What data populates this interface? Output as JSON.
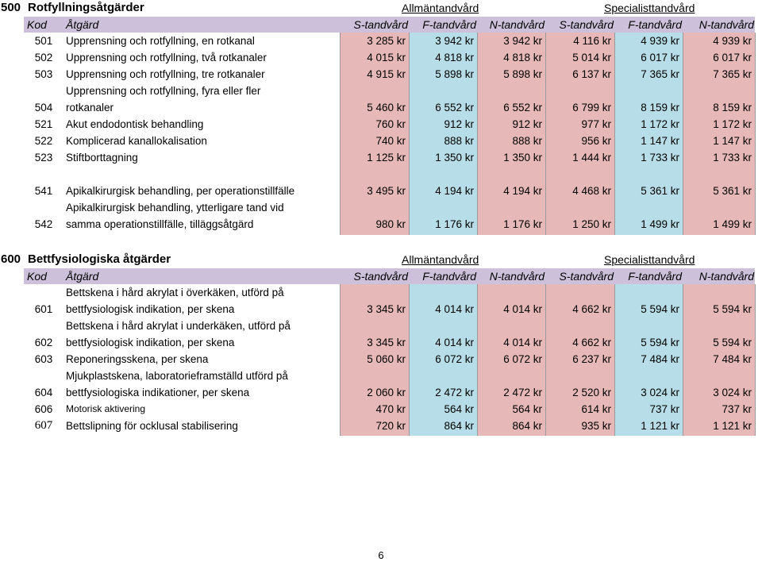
{
  "columns": [
    "S-tandvård",
    "F-tandvård",
    "N-tandvård",
    "S-tandvård",
    "F-tandvård",
    "N-tandvård"
  ],
  "header": {
    "kod": "Kod",
    "atgard": "Åtgärd",
    "group_a": "Allmäntandvård",
    "group_s": "Specialisttandvård"
  },
  "sections": [
    {
      "number": "500",
      "title": "Rotfyllningsåtgärder",
      "rows": [
        {
          "code": "501",
          "desc": "Upprensning och rotfyllning, en rotkanal",
          "prices": [
            "3 285 kr",
            "3 942 kr",
            "3 942 kr",
            "4 116 kr",
            "4 939 kr",
            "4 939 kr"
          ]
        },
        {
          "code": "502",
          "desc": "Upprensning och rotfyllning, två rotkanaler",
          "prices": [
            "4 015 kr",
            "4 818 kr",
            "4 818 kr",
            "5 014 kr",
            "6 017 kr",
            "6 017 kr"
          ]
        },
        {
          "code": "503",
          "desc": "Upprensning och rotfyllning, tre rotkanaler",
          "prices": [
            "4 915 kr",
            "5 898 kr",
            "5 898 kr",
            "6 137 kr",
            "7 365 kr",
            "7 365 kr"
          ]
        },
        {
          "code": "504",
          "desc": "Upprensning och rotfyllning, fyra eller fler rotkanaler",
          "prices": [
            "5 460 kr",
            "6 552 kr",
            "6 552 kr",
            "6 799 kr",
            "8 159 kr",
            "8 159 kr"
          ]
        },
        {
          "code": "521",
          "desc": "Akut endodontisk behandling",
          "prices": [
            "760 kr",
            "912 kr",
            "912 kr",
            "977 kr",
            "1 172 kr",
            "1 172 kr"
          ]
        },
        {
          "code": "522",
          "desc": "Komplicerad kanallokalisation",
          "prices": [
            "740 kr",
            "888 kr",
            "888 kr",
            "956 kr",
            "1 147 kr",
            "1 147 kr"
          ]
        },
        {
          "code": "523",
          "desc": "Stiftborttagning",
          "prices": [
            "1 125 kr",
            "1 350 kr",
            "1 350 kr",
            "1 444 kr",
            "1 733 kr",
            "1 733 kr"
          ]
        },
        {
          "code": "541",
          "desc": "Apikalkirurgisk behandling, per operationstillfälle",
          "prices": [
            "3 495 kr",
            "4 194 kr",
            "4 194 kr",
            "4 468 kr",
            "5 361 kr",
            "5 361 kr"
          ]
        },
        {
          "code": "542",
          "desc": "Apikalkirurgisk behandling, ytterligare tand vid samma operationstillfälle, tilläggsåtgärd",
          "prices": [
            "980 kr",
            "1 176 kr",
            "1 176 kr",
            "1 250 kr",
            "1 499 kr",
            "1 499 kr"
          ]
        }
      ]
    },
    {
      "number": "600",
      "title": "Bettfysiologiska åtgärder",
      "rows": [
        {
          "code": "601",
          "desc": "Bettskena i hård akrylat i överkäken, utförd på bettfysiologisk indikation, per skena",
          "prices": [
            "3 345 kr",
            "4 014 kr",
            "4 014 kr",
            "4 662 kr",
            "5 594 kr",
            "5 594 kr"
          ]
        },
        {
          "code": "602",
          "desc": "Bettskena i hård akrylat i underkäken, utförd på bettfysiologisk indikation, per skena",
          "prices": [
            "3 345 kr",
            "4 014 kr",
            "4 014 kr",
            "4 662 kr",
            "5 594 kr",
            "5 594 kr"
          ]
        },
        {
          "code": "603",
          "desc": "Reponeringsskena, per skena",
          "prices": [
            "5 060 kr",
            "6 072 kr",
            "6 072 kr",
            "6 237 kr",
            "7 484 kr",
            "7 484 kr"
          ]
        },
        {
          "code": "604",
          "desc": "Mjukplastskena, laboratorieframställd utförd på bettfysiologiska indikationer, per skena",
          "prices": [
            "2 060 kr",
            "2 472 kr",
            "2 472 kr",
            "2 520 kr",
            "3 024 kr",
            "3 024 kr"
          ]
        },
        {
          "code": "606",
          "desc": "Motorisk aktivering",
          "prices": [
            "470 kr",
            "564 kr",
            "564 kr",
            "614 kr",
            "737 kr",
            "737 kr"
          ]
        },
        {
          "code": "607",
          "desc": "Bettslipning för ocklusal stabilisering",
          "prices": [
            "720 kr",
            "864 kr",
            "864 kr",
            "935 kr",
            "1 121 kr",
            "1 121 kr"
          ]
        }
      ]
    }
  ],
  "page_number": "6"
}
